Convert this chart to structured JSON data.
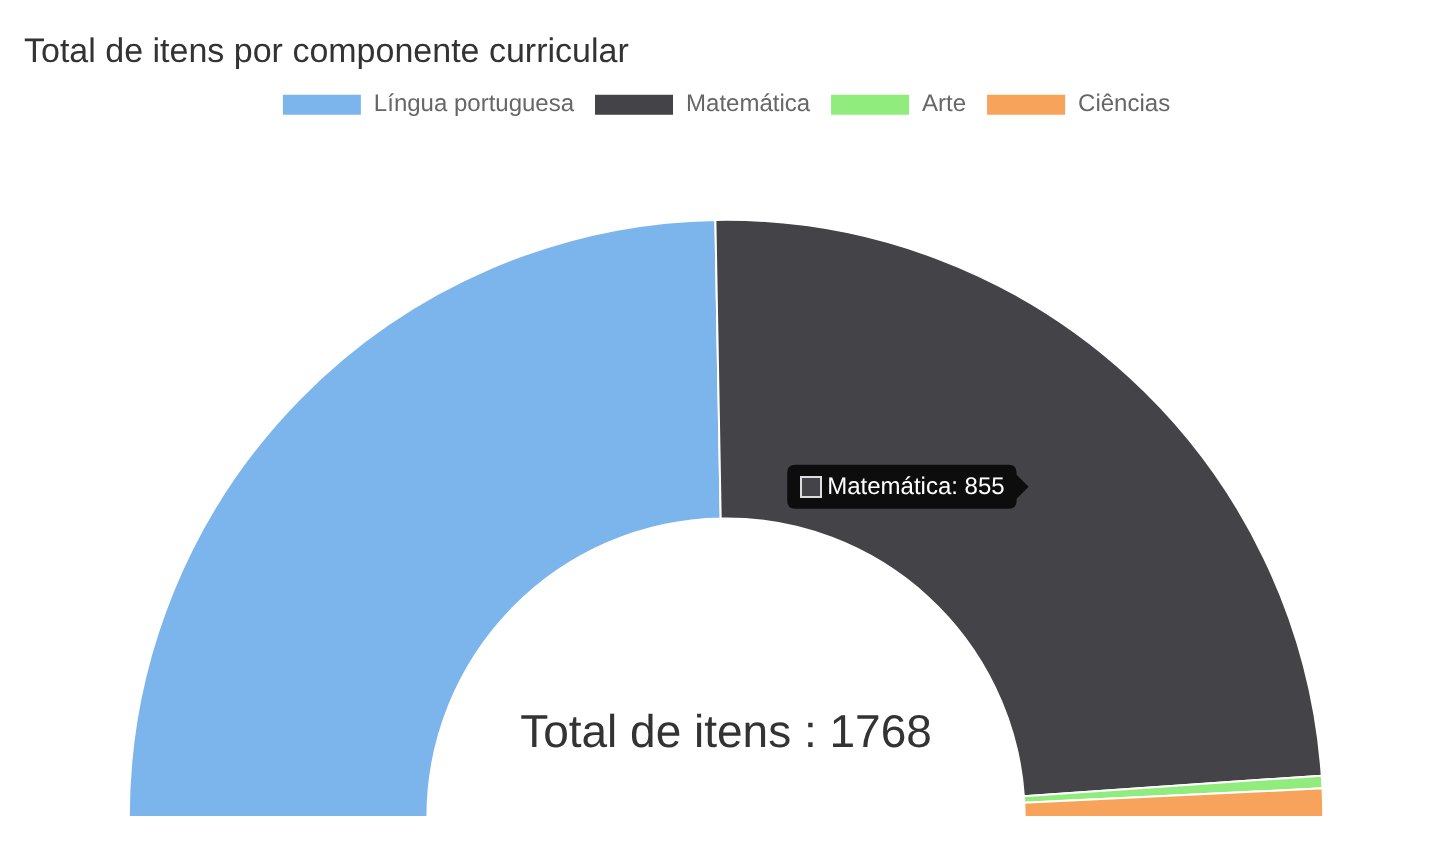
{
  "chart_data": {
    "type": "donut",
    "title": "Total de itens por componente curricular",
    "categories": [
      "Língua portuguesa",
      "Matemática",
      "Arte",
      "Ciências"
    ],
    "values": [
      874,
      855,
      12,
      27
    ],
    "colors": [
      "#7cb5ec",
      "#434348",
      "#90ed7d",
      "#f7a35c"
    ],
    "legend": "top",
    "value_labels": [
      null,
      "Matemática: 855",
      null,
      null
    ],
    "annotations": [
      "Total de itens : 1768"
    ]
  }
}
